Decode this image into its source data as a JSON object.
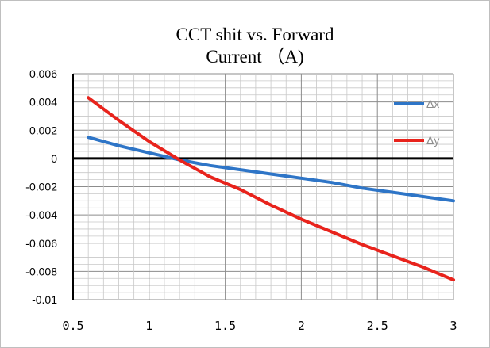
{
  "chart_data": {
    "type": "line",
    "title_line1": "CCT shit vs. Forward",
    "title_line2": "Current （A)",
    "xlabel": "",
    "ylabel": "",
    "xlim": [
      0.5,
      3
    ],
    "ylim": [
      -0.01,
      0.006
    ],
    "x_ticks": [
      "0.5",
      "1",
      "1.5",
      "2",
      "2.5",
      "3"
    ],
    "y_ticks": [
      "0.006",
      "0.004",
      "0.002",
      "0",
      "-0.002",
      "-0.004",
      "-0.006",
      "-0.008",
      "-0.01"
    ],
    "grid": true,
    "legend_position": "right",
    "series": [
      {
        "name": "Δx",
        "color": "#2e75c7",
        "x": [
          0.6,
          0.8,
          1.0,
          1.2,
          1.4,
          1.6,
          1.8,
          2.0,
          2.2,
          2.4,
          2.6,
          2.8,
          3.0
        ],
        "y": [
          0.0015,
          0.0009,
          0.0004,
          -0.0001,
          -0.0005,
          -0.0008,
          -0.0011,
          -0.0014,
          -0.0017,
          -0.0021,
          -0.0024,
          -0.0027,
          -0.003
        ]
      },
      {
        "name": "Δy",
        "color": "#e8231c",
        "x": [
          0.6,
          0.8,
          1.0,
          1.2,
          1.4,
          1.6,
          1.8,
          2.0,
          2.2,
          2.4,
          2.6,
          2.8,
          3.0
        ],
        "y": [
          0.0043,
          0.0027,
          0.0012,
          -0.0001,
          -0.0013,
          -0.0022,
          -0.0033,
          -0.0043,
          -0.0052,
          -0.0061,
          -0.0069,
          -0.0077,
          -0.0086
        ]
      }
    ]
  }
}
